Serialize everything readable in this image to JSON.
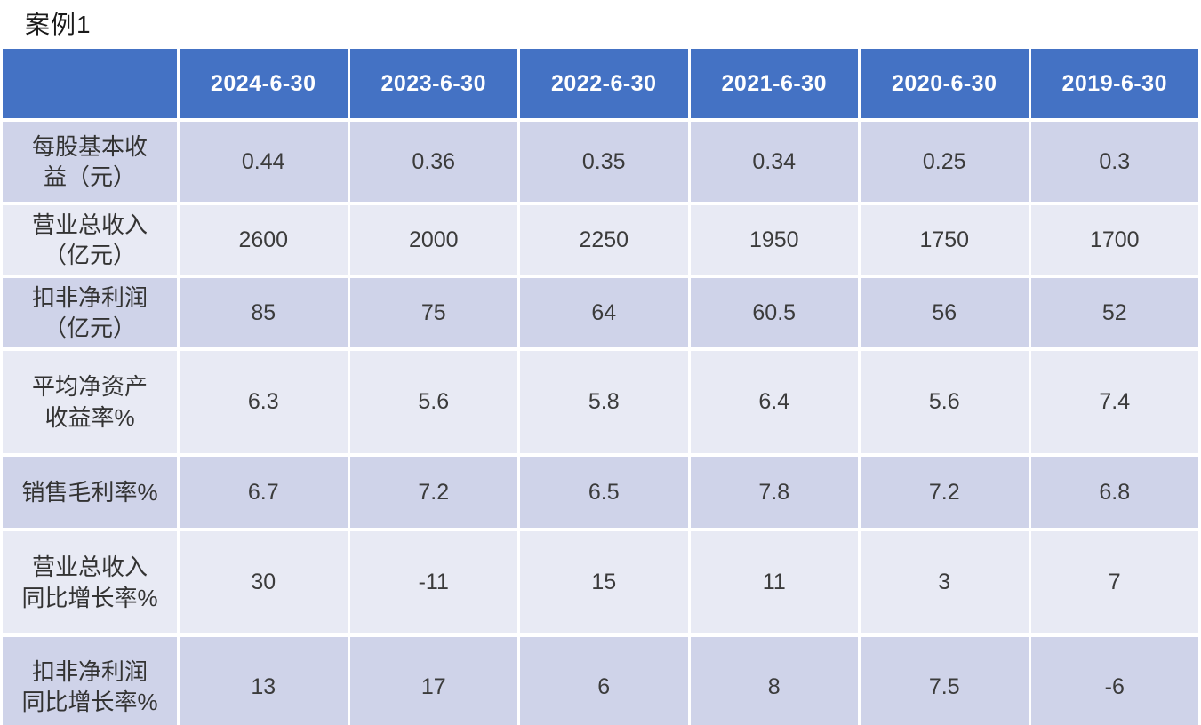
{
  "title": "案例1",
  "colors": {
    "header_bg": "#4472C4",
    "header_text": "#FFFFFF",
    "band_dark": "#CFD3E9",
    "band_light": "#E8EAF4",
    "cell_text": "#3B3B3B",
    "background": "#FFFFFF"
  },
  "table": {
    "columns": [
      "",
      "2024-6-30",
      "2023-6-30",
      "2022-6-30",
      "2021-6-30",
      "2020-6-30",
      "2019-6-30"
    ],
    "rows": [
      {
        "label": "每股基本收\n益（元）",
        "values": [
          "0.44",
          "0.36",
          "0.35",
          "0.34",
          "0.25",
          "0.3"
        ]
      },
      {
        "label": "营业总收入\n（亿元）",
        "values": [
          "2600",
          "2000",
          "2250",
          "1950",
          "1750",
          "1700"
        ]
      },
      {
        "label": "扣非净利润\n（亿元）",
        "values": [
          "85",
          "75",
          "64",
          "60.5",
          "56",
          "52"
        ]
      },
      {
        "label": "平均净资产\n收益率%",
        "values": [
          "6.3",
          "5.6",
          "5.8",
          "6.4",
          "5.6",
          "7.4"
        ]
      },
      {
        "label": "销售毛利率%",
        "values": [
          "6.7",
          "7.2",
          "6.5",
          "7.8",
          "7.2",
          "6.8"
        ]
      },
      {
        "label": "营业总收入\n同比增长率%",
        "values": [
          "30",
          "-11",
          "15",
          "11",
          "3",
          "7"
        ]
      },
      {
        "label": "扣非净利润\n同比增长率%",
        "values": [
          "13",
          "17",
          "6",
          "8",
          "7.5",
          "-6"
        ]
      }
    ]
  },
  "chart_data": {
    "type": "table",
    "title": "案例1",
    "categories": [
      "2024-6-30",
      "2023-6-30",
      "2022-6-30",
      "2021-6-30",
      "2020-6-30",
      "2019-6-30"
    ],
    "series": [
      {
        "name": "每股基本收益（元）",
        "values": [
          0.44,
          0.36,
          0.35,
          0.34,
          0.25,
          0.3
        ]
      },
      {
        "name": "营业总收入（亿元）",
        "values": [
          2600,
          2000,
          2250,
          1950,
          1750,
          1700
        ]
      },
      {
        "name": "扣非净利润（亿元）",
        "values": [
          85,
          75,
          64,
          60.5,
          56,
          52
        ]
      },
      {
        "name": "平均净资产收益率%",
        "values": [
          6.3,
          5.6,
          5.8,
          6.4,
          5.6,
          7.4
        ]
      },
      {
        "name": "销售毛利率%",
        "values": [
          6.7,
          7.2,
          6.5,
          7.8,
          7.2,
          6.8
        ]
      },
      {
        "name": "营业总收入同比增长率%",
        "values": [
          30,
          -11,
          15,
          11,
          3,
          7
        ]
      },
      {
        "name": "扣非净利润同比增长率%",
        "values": [
          13,
          17,
          6,
          8,
          7.5,
          -6
        ]
      }
    ]
  }
}
